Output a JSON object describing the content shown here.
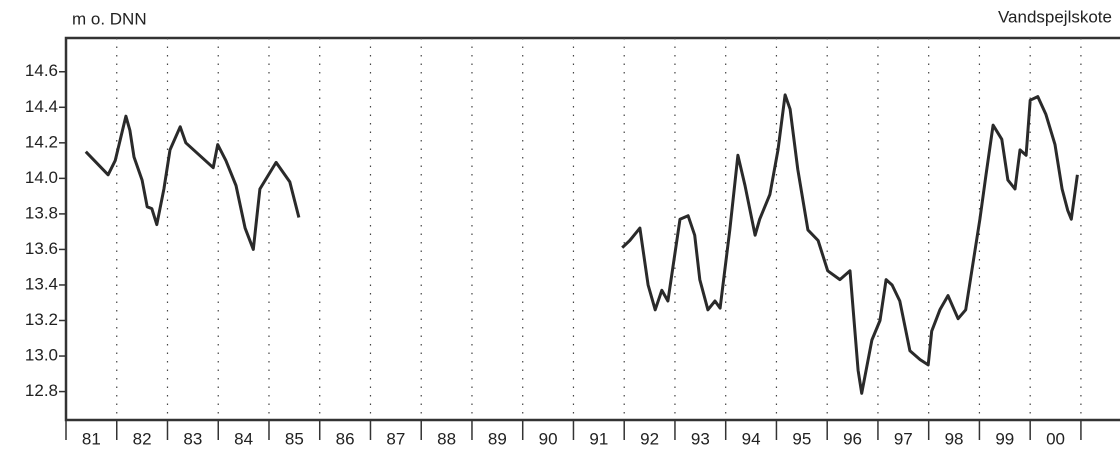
{
  "chart_data": {
    "type": "line",
    "title": "Vandspejlskote",
    "y_label": "m o. DNN",
    "xlim": [
      1981,
      2001.77
    ],
    "ylim": [
      12.64,
      14.79
    ],
    "yticks": [
      12.8,
      {
        "value": 13,
        "label": "13.0"
      },
      13.2,
      13.4,
      13.6,
      13.8,
      {
        "value": 14,
        "label": "14.0"
      },
      14.2,
      14.4,
      14.6
    ],
    "xticks": [
      {
        "value": 1981,
        "label": "81"
      },
      {
        "value": 1982,
        "label": "82"
      },
      {
        "value": 1983,
        "label": "83"
      },
      {
        "value": 1984,
        "label": "84"
      },
      {
        "value": 1985,
        "label": "85"
      },
      {
        "value": 1986,
        "label": "86"
      },
      {
        "value": 1987,
        "label": "87"
      },
      {
        "value": 1988,
        "label": "88"
      },
      {
        "value": 1989,
        "label": "89"
      },
      {
        "value": 1990,
        "label": "90"
      },
      {
        "value": 1991,
        "label": "91"
      },
      {
        "value": 1992,
        "label": "92"
      },
      {
        "value": 1993,
        "label": "93"
      },
      {
        "value": 1994,
        "label": "94"
      },
      {
        "value": 1995,
        "label": "95"
      },
      {
        "value": 1996,
        "label": "96"
      },
      {
        "value": 1997,
        "label": "97"
      },
      {
        "value": 1998,
        "label": "98"
      },
      {
        "value": 1999,
        "label": "99"
      },
      {
        "value": 2000,
        "label": "00"
      },
      {
        "value": 2001,
        "label": null
      }
    ],
    "grid": true,
    "x": [
      1981.39,
      1981.83,
      1981.97,
      1982.18,
      1982.26,
      1982.34,
      1982.5,
      1982.6,
      1982.69,
      1982.79,
      1982.93,
      1983.05,
      1983.25,
      1983.36,
      1983.9,
      1983.99,
      1984.15,
      1984.35,
      1984.53,
      1984.69,
      1984.82,
      1985.14,
      1985.41,
      1985.59,
      1988.5,
      1991.96,
      1992.11,
      1992.31,
      1992.47,
      1992.61,
      1992.74,
      1992.86,
      1993.1,
      1993.26,
      1993.39,
      1993.49,
      1993.65,
      1993.79,
      1993.89,
      1994.08,
      1994.24,
      1994.38,
      1994.58,
      1994.67,
      1994.87,
      1995.03,
      1995.17,
      1995.27,
      1995.42,
      1995.62,
      1995.82,
      1996.01,
      1996.25,
      1996.45,
      1996.61,
      1996.68,
      1996.88,
      1997.04,
      1997.16,
      1997.28,
      1997.43,
      1997.63,
      1997.83,
      1997.99,
      1998.06,
      1998.22,
      1998.38,
      1998.58,
      1998.73,
      1998.85,
      1999.01,
      1999.13,
      1999.27,
      1999.44,
      1999.56,
      1999.7,
      1999.8,
      1999.92,
      2000.0,
      2000.15,
      2000.31,
      2000.49,
      2000.63,
      2000.74,
      2000.81,
      2000.93
    ],
    "series": [
      {
        "color": "#2a2a2a",
        "values": [
          14.15,
          14.02,
          14.1,
          14.35,
          14.27,
          14.12,
          13.99,
          13.84,
          13.83,
          13.74,
          13.94,
          14.16,
          14.29,
          14.2,
          14.06,
          14.19,
          14.1,
          13.96,
          13.72,
          13.6,
          13.94,
          14.09,
          13.98,
          13.78,
          null,
          13.61,
          13.65,
          13.72,
          13.4,
          13.26,
          13.37,
          13.31,
          13.77,
          13.79,
          13.68,
          13.43,
          13.26,
          13.31,
          13.27,
          13.71,
          14.13,
          13.96,
          13.68,
          13.77,
          13.91,
          14.16,
          14.47,
          14.39,
          14.05,
          13.71,
          13.65,
          13.48,
          13.43,
          13.48,
          12.92,
          12.79,
          13.09,
          13.2,
          13.43,
          13.4,
          13.31,
          13.03,
          12.98,
          12.95,
          13.14,
          13.26,
          13.34,
          13.21,
          13.26,
          13.48,
          13.77,
          14.02,
          14.3,
          14.22,
          13.99,
          13.94,
          14.16,
          14.13,
          14.44,
          14.46,
          14.36,
          14.19,
          13.94,
          13.82,
          13.77,
          14.02
        ]
      }
    ]
  }
}
